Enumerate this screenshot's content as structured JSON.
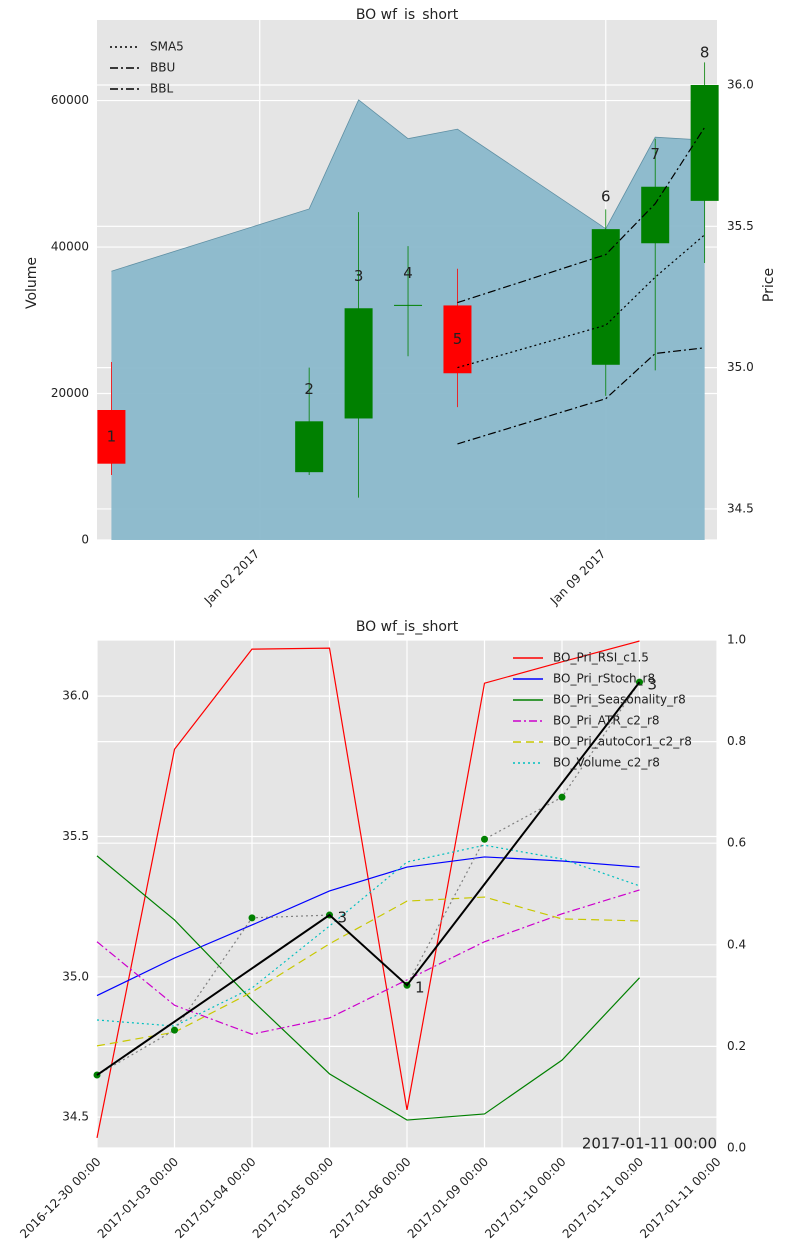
{
  "chart_data": [
    {
      "type": "candlestick",
      "title": "BO wf_is_short",
      "ylabel": "Volume",
      "y2label": "Price",
      "x": [
        "2016-12-30",
        "2017-01-03",
        "2017-01-04",
        "2017-01-05",
        "2017-01-06",
        "2017-01-09",
        "2017-01-10",
        "2017-01-11"
      ],
      "xlim": [
        "2016-12-29T17:00",
        "2017-01-11T06:00"
      ],
      "xticks": [
        {
          "value": "2017-01-02",
          "label": "Jan 02 2017"
        },
        {
          "value": "2017-01-09",
          "label": "Jan 09 2017"
        }
      ],
      "ylim": [
        0,
        71000
      ],
      "yticks": [
        0,
        20000,
        40000,
        60000
      ],
      "y2lim": [
        34.39,
        36.23
      ],
      "y2ticks": [
        34.5,
        {
          "value": 35,
          "label": "35.0"
        },
        35.5,
        {
          "value": 36,
          "label": "36.0"
        }
      ],
      "volume": {
        "color": "#8ab8cb",
        "values": [
          36700,
          45200,
          60100,
          54800,
          56100,
          42500,
          55000,
          54600
        ]
      },
      "open": [
        34.85,
        34.63,
        34.82,
        35.22,
        35.22,
        35.01,
        35.44,
        35.59
      ],
      "high": [
        35.02,
        35.0,
        35.55,
        35.43,
        35.35,
        35.56,
        35.81,
        36.08
      ],
      "low": [
        34.62,
        34.62,
        34.54,
        35.04,
        34.86,
        34.9,
        34.99,
        35.37
      ],
      "close": [
        34.66,
        34.81,
        35.21,
        35.22,
        34.98,
        35.49,
        35.64,
        36.0
      ],
      "up_color": "green",
      "down_color": "red",
      "candle_labels": [
        "1",
        "2",
        "3",
        "4",
        "5",
        "6",
        "7",
        "8"
      ],
      "series": [
        {
          "name": "SMA5",
          "color": "black",
          "linestyle": "dotted",
          "axis": "y2",
          "values": [
            null,
            null,
            null,
            null,
            35.0,
            35.15,
            35.32,
            35.47
          ]
        },
        {
          "name": "BBU",
          "color": "black",
          "linestyle": "dashdot",
          "axis": "y2",
          "values": [
            null,
            null,
            null,
            null,
            35.23,
            35.4,
            35.58,
            35.85
          ]
        },
        {
          "name": "BBL",
          "color": "black",
          "linestyle": "dashdot",
          "axis": "y2",
          "values": [
            null,
            null,
            null,
            null,
            34.73,
            34.89,
            35.05,
            35.07
          ]
        }
      ],
      "legend": "upper left",
      "grid": true
    },
    {
      "type": "line",
      "title": "BO wf_is_short",
      "categories": [
        "2016-12-30 00:00",
        "2017-01-03 00:00",
        "2017-01-04 00:00",
        "2017-01-05 00:00",
        "2017-01-06 00:00",
        "2017-01-09 00:00",
        "2017-01-10 00:00",
        "2017-01-11 00:00",
        "2017-01-11 00:00"
      ],
      "ylim": [
        34.39,
        36.2
      ],
      "yticks": [
        34.5,
        {
          "value": 35,
          "label": "35.0"
        },
        35.5,
        {
          "value": 36,
          "label": "36.0"
        }
      ],
      "y2lim": [
        0,
        1
      ],
      "y2ticks": [
        {
          "value": 0,
          "label": "0.0"
        },
        0.2,
        0.4,
        0.6,
        0.8,
        {
          "value": 1,
          "label": "1.0"
        }
      ],
      "series": [
        {
          "name": "BO_Pri_RSI_c1.5",
          "color": "red",
          "linestyle": "solid",
          "axis": "y2",
          "values": [
            0.02,
            0.785,
            0.982,
            0.984,
            0.075,
            0.915,
            0.957,
            0.998,
            null
          ]
        },
        {
          "name": "BO_Pri_rStoch_r8",
          "color": "blue",
          "linestyle": "solid",
          "axis": "y2",
          "values": [
            0.3,
            0.374,
            0.439,
            0.506,
            0.553,
            0.573,
            0.565,
            0.553,
            null
          ]
        },
        {
          "name": "BO_Pri_Seasonality_r8",
          "color": "green",
          "linestyle": "solid",
          "axis": "y2",
          "values": [
            0.575,
            0.449,
            0.291,
            0.146,
            0.055,
            0.067,
            0.173,
            0.335,
            null
          ]
        },
        {
          "name": "BO_Pri_ATR_c2_r8",
          "color": "#cc00cc",
          "linestyle": "dashdot",
          "axis": "y2",
          "values": [
            0.406,
            0.281,
            0.224,
            0.256,
            0.331,
            0.406,
            0.461,
            0.508,
            null
          ]
        },
        {
          "name": "BO_Pri_autoCor1_c2_r8",
          "color": "#c8c800",
          "linestyle": "dashed",
          "axis": "y2",
          "values": [
            0.201,
            0.228,
            0.307,
            0.402,
            0.486,
            0.494,
            0.451,
            0.447,
            null
          ]
        },
        {
          "name": "BO_Volume_c2_r8",
          "color": "#00bfbf",
          "linestyle": "dotted",
          "axis": "y2",
          "values": [
            0.252,
            0.24,
            0.315,
            0.437,
            0.563,
            0.596,
            0.569,
            0.516,
            null
          ]
        },
        {
          "color": "gray",
          "linestyle": "dotted",
          "marker_color": "green",
          "values": [
            34.65,
            34.81,
            35.21,
            35.22,
            34.97,
            35.49,
            35.64,
            36.05,
            null
          ]
        },
        {
          "color": "black",
          "linestyle": "solid",
          "linewidth": 2,
          "x": [
            "2016-12-30 00:00",
            "2017-01-05 00:00",
            "2017-01-06 00:00",
            "2017-01-11 00:00"
          ],
          "values": [
            34.65,
            35.22,
            34.97,
            36.05
          ],
          "point_labels": [
            null,
            "3",
            "1",
            "3"
          ]
        }
      ],
      "annotation": "2017-01-11 00:00",
      "legend": "upper right",
      "grid": true
    }
  ]
}
